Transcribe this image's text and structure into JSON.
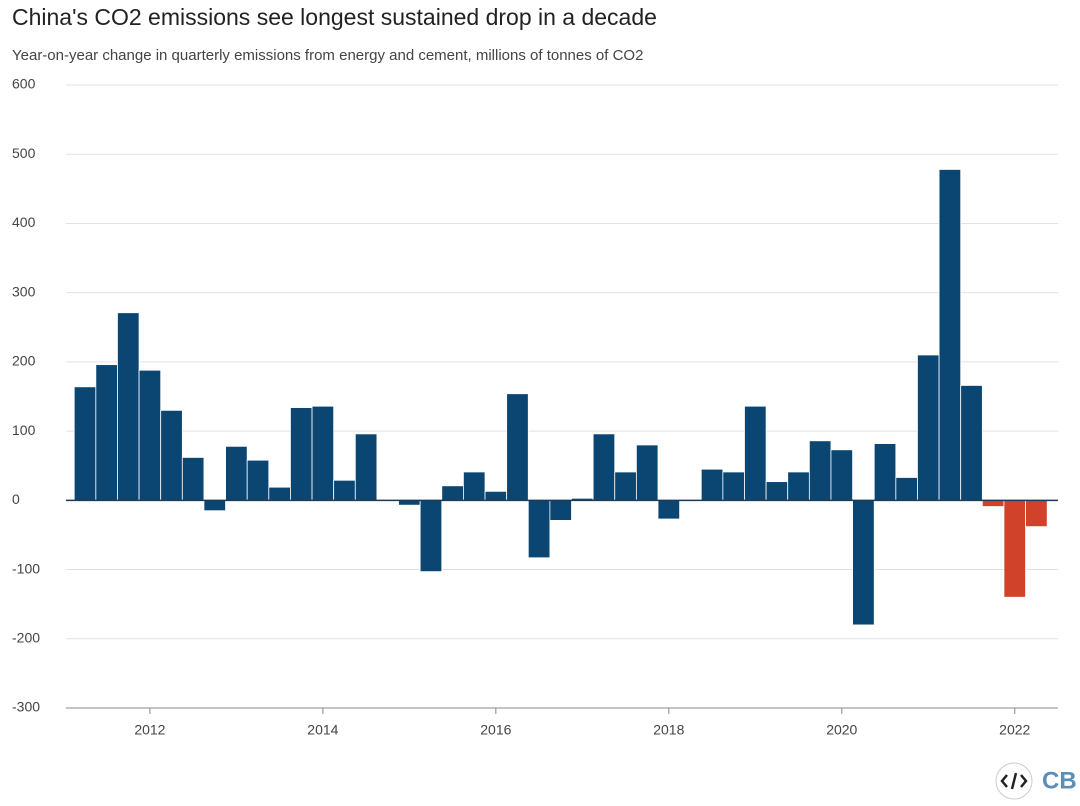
{
  "chart_data": {
    "type": "bar",
    "title": "China's CO2 emissions see longest sustained drop in a decade",
    "subtitle": "Year-on-year change in quarterly emissions from energy and cement, millions of tonnes of CO2",
    "x": [
      2011.25,
      2011.5,
      2011.75,
      2012.0,
      2012.25,
      2012.5,
      2012.75,
      2013.0,
      2013.25,
      2013.5,
      2013.75,
      2014.0,
      2014.25,
      2014.5,
      2014.75,
      2015.0,
      2015.25,
      2015.5,
      2015.75,
      2016.0,
      2016.25,
      2016.5,
      2016.75,
      2017.0,
      2017.25,
      2017.5,
      2017.75,
      2018.0,
      2018.25,
      2018.5,
      2018.75,
      2019.0,
      2019.25,
      2019.5,
      2019.75,
      2020.0,
      2020.25,
      2020.5,
      2020.75,
      2021.0,
      2021.25,
      2021.5,
      2021.75,
      2022.0,
      2022.25
    ],
    "values": [
      164,
      196,
      271,
      188,
      130,
      62,
      -15,
      78,
      58,
      19,
      134,
      136,
      29,
      96,
      -1,
      -7,
      -103,
      21,
      41,
      13,
      154,
      -83,
      -29,
      3,
      96,
      41,
      80,
      -27,
      0,
      45,
      41,
      136,
      27,
      41,
      86,
      73,
      -180,
      82,
      33,
      210,
      478,
      166,
      -9,
      -140,
      -38
    ],
    "colors": [
      "#0b4572",
      "#0b4572",
      "#0b4572",
      "#0b4572",
      "#0b4572",
      "#0b4572",
      "#0b4572",
      "#0b4572",
      "#0b4572",
      "#0b4572",
      "#0b4572",
      "#0b4572",
      "#0b4572",
      "#0b4572",
      "#0b4572",
      "#0b4572",
      "#0b4572",
      "#0b4572",
      "#0b4572",
      "#0b4572",
      "#0b4572",
      "#0b4572",
      "#0b4572",
      "#0b4572",
      "#0b4572",
      "#0b4572",
      "#0b4572",
      "#0b4572",
      "#0b4572",
      "#0b4572",
      "#0b4572",
      "#0b4572",
      "#0b4572",
      "#0b4572",
      "#0b4572",
      "#0b4572",
      "#0b4572",
      "#0b4572",
      "#0b4572",
      "#0b4572",
      "#0b4572",
      "#0b4572",
      "#d0432a",
      "#d0432a",
      "#d0432a"
    ],
    "bar_width": 0.25,
    "xlim": [
      2011.03,
      2022.5
    ],
    "xticks": [
      2012,
      2014,
      2016,
      2018,
      2020,
      2022
    ],
    "ylim": [
      -300,
      600
    ],
    "yticks": [
      -300,
      -200,
      -100,
      0,
      100,
      200,
      300,
      400,
      500,
      600
    ],
    "grid": true
  },
  "logo": "CB"
}
